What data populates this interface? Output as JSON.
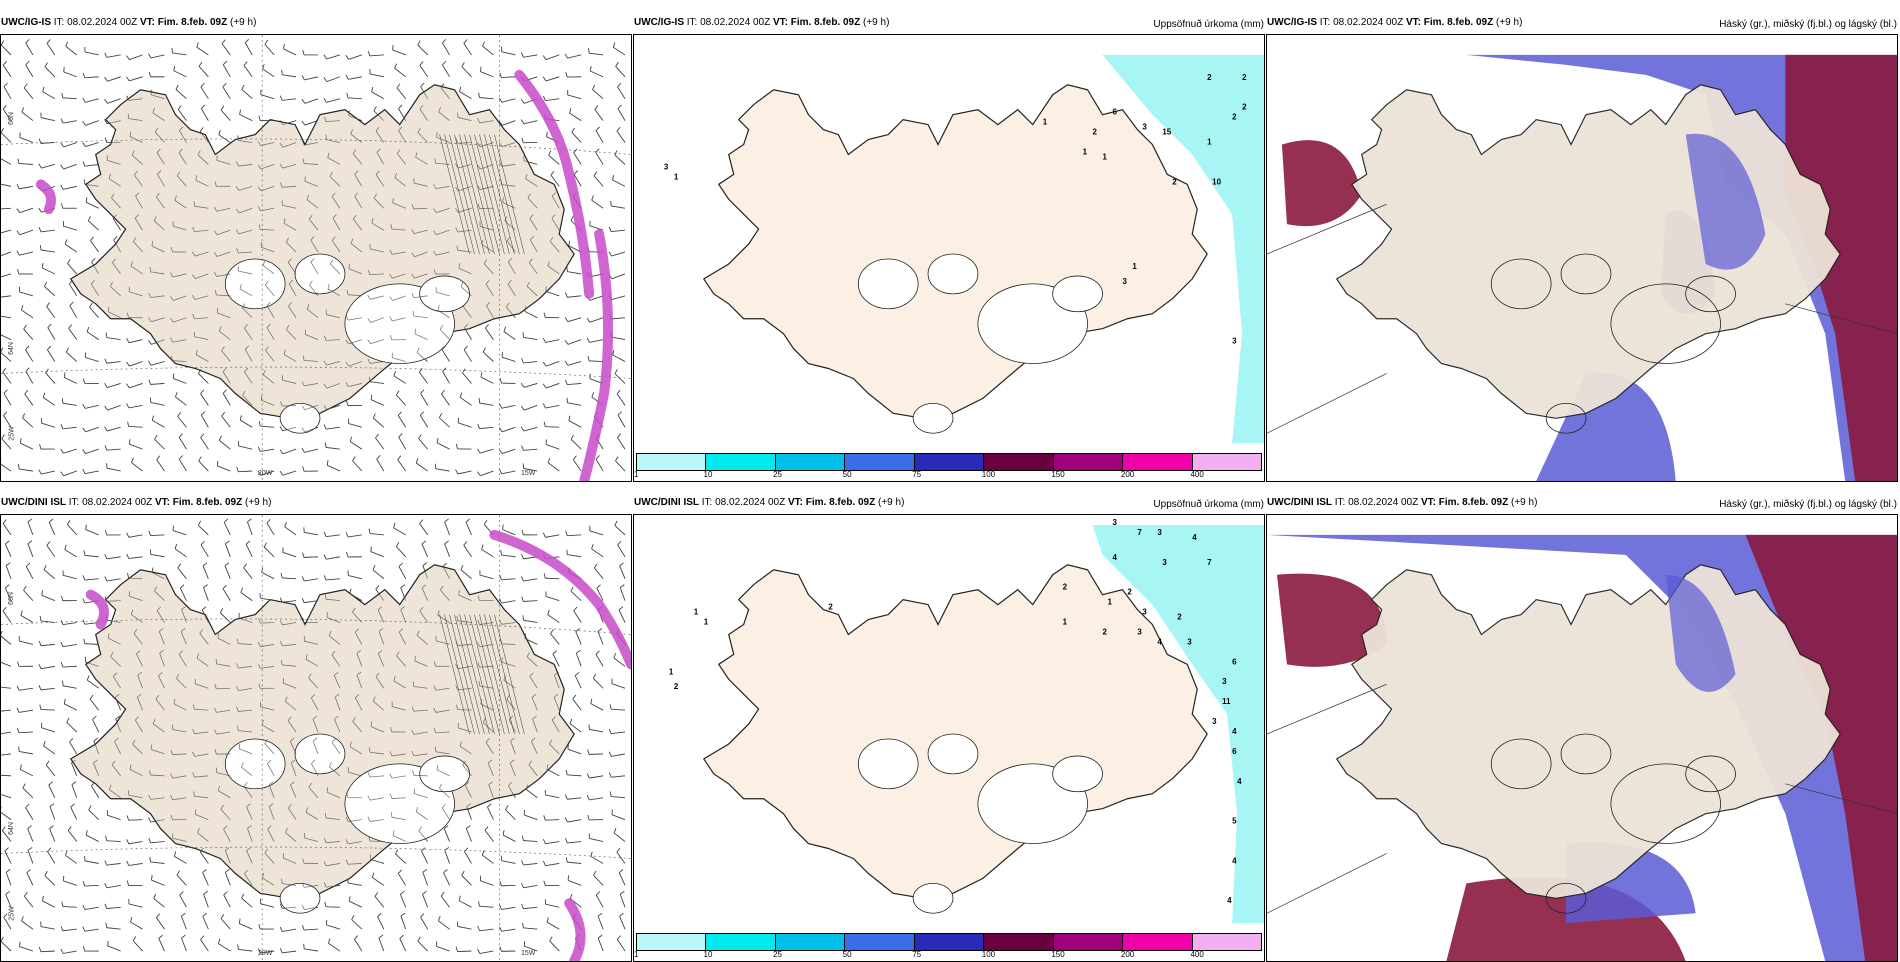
{
  "rows": [
    {
      "id": "top",
      "wind_panel": {
        "model": "UWC/IG-IS",
        "it_label": "IT:",
        "it_value": "08.02.2024 00Z",
        "vt_label": "VT:",
        "vt_value": "Fim. 8.feb. 09Z",
        "lead": "(+9 h)"
      },
      "precip_panel": {
        "model": "UWC/IG-IS",
        "it_label": "IT:",
        "it_value": "08.02.2024 00Z",
        "vt_label": "VT:",
        "vt_value": "Fim. 8.feb. 09Z",
        "lead": "(+9 h)",
        "right_title": "Uppsöfnuð úrkoma (mm)"
      },
      "cloud_panel": {
        "model": "UWC/IG-IS",
        "it_label": "IT:",
        "it_value": "08.02.2024 00Z",
        "vt_label": "VT:",
        "vt_value": "Fim. 8.feb. 09Z",
        "lead": "(+9 h)",
        "right_title": "Háský (gr.), miðský (fj.bl.) og lágský (bl.)"
      }
    },
    {
      "id": "bottom",
      "wind_panel": {
        "model": "UWC/DINI ISL",
        "it_label": "IT:",
        "it_value": "08.02.2024 00Z",
        "vt_label": "VT:",
        "vt_value": "Fim. 8.feb. 09Z",
        "lead": "(+9 h)"
      },
      "precip_panel": {
        "model": "UWC/DINI ISL",
        "it_label": "IT:",
        "it_value": "08.02.2024 00Z",
        "vt_label": "VT:",
        "vt_value": "Fim. 8.feb. 09Z",
        "lead": "(+9 h)",
        "right_title": "Uppsöfnuð úrkoma (mm)"
      },
      "cloud_panel": {
        "model": "UWC/DINI ISL",
        "it_label": "IT:",
        "it_value": "08.02.2024 00Z",
        "vt_label": "VT:",
        "vt_value": "Fim. 8.feb. 09Z",
        "lead": "(+9 h)",
        "right_title": "Háský (gr.), miðský (fj.bl.) og lágský (bl.)"
      }
    }
  ],
  "axis_labels": {
    "lon_20w": "20W",
    "lon_15w": "15W",
    "lat_66n": "66N",
    "lat_64n": "64N",
    "lat_25w": "25W"
  },
  "colorbar": {
    "labels": [
      "1",
      "10",
      "25",
      "50",
      "75",
      "100",
      "150",
      "200",
      "400"
    ],
    "colors": [
      "#b8f8f8",
      "#00ecec",
      "#00c0e8",
      "#3a6ee8",
      "#2a2ab8",
      "#6a0040",
      "#a0007a",
      "#f000a8",
      "#f2b0f2"
    ]
  },
  "precip_labels_top": [
    "2",
    "2",
    "2",
    "2",
    "1",
    "6",
    "3",
    "15",
    "2",
    "1",
    "1",
    "1",
    "2",
    "10",
    "3",
    "3",
    "1",
    "1",
    "3"
  ],
  "precip_labels_bottom": [
    "3",
    "7",
    "3",
    "4",
    "2",
    "4",
    "3",
    "7",
    "2",
    "1",
    "3",
    "2",
    "1",
    "2",
    "3",
    "4",
    "3",
    "6",
    "3",
    "11",
    "3",
    "4",
    "6",
    "4",
    "5",
    "4",
    "4",
    "1",
    "1",
    "1",
    "2",
    "2"
  ],
  "colors": {
    "land_wind": "#efe4d8",
    "land_precip": "#fcefe3",
    "land_cloud": "#ede3d8",
    "precip_cyan": "#a8f5f5",
    "cloud_high": "#8a1a3e",
    "cloud_mid": "#4a4ad0",
    "cloud_low": "#6ab8f2",
    "ice_magenta": "#c64ac8"
  }
}
